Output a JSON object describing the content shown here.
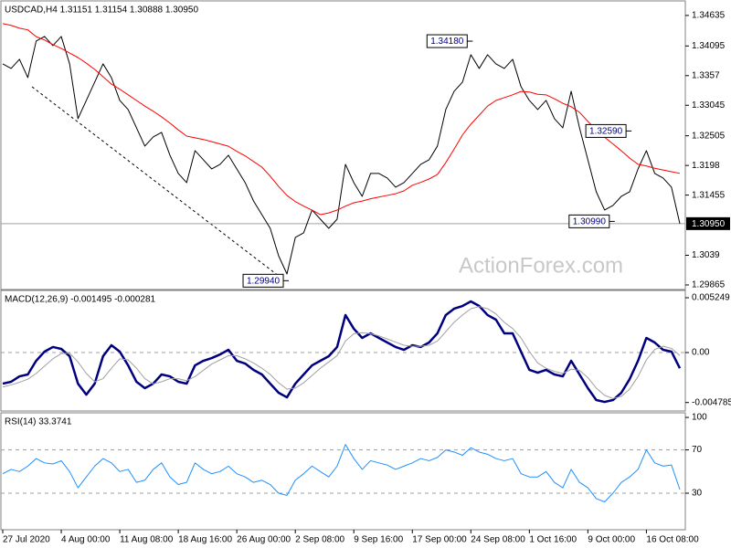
{
  "chart_data": [
    {
      "type": "line",
      "title": "USDCAD,H4 1.31151 1.31154 1.30888 1.30950",
      "ylim": [
        1.298,
        1.3486
      ],
      "yticks": [
        1.34635,
        1.34095,
        1.3357,
        1.33045,
        1.32505,
        1.3198,
        1.31455,
        1.3039,
        1.29865
      ],
      "series": [
        {
          "color": "#000000",
          "values": [
            1.33778,
            1.33697,
            1.33859,
            1.33535,
            1.34182,
            1.34263,
            1.34101,
            1.34263,
            1.33778,
            1.32808,
            1.33131,
            1.33455,
            1.33778,
            1.33535,
            1.33131,
            1.32969,
            1.32646,
            1.32323,
            1.32484,
            1.32565,
            1.32161,
            1.31838,
            1.31676,
            1.32242,
            1.3208,
            1.31918,
            1.31999,
            1.32161,
            1.31918,
            1.31676,
            1.31352,
            1.3111,
            1.30867,
            1.30382,
            1.30059,
            1.30706,
            1.30787,
            1.31191,
            1.31029,
            1.30867,
            1.31029,
            1.31999,
            1.31676,
            1.31433,
            1.31838,
            1.31838,
            1.31757,
            1.31595,
            1.31676,
            1.31838,
            1.31999,
            1.3208,
            1.32323,
            1.32969,
            1.33293,
            1.33455,
            1.3394,
            1.33697,
            1.3394,
            1.33778,
            1.33697,
            1.33859,
            1.33374,
            1.33131,
            1.32969,
            1.33131,
            1.32808,
            1.32646,
            1.33293,
            1.32646,
            1.3208,
            1.31514,
            1.31191,
            1.31272,
            1.31433,
            1.31514,
            1.31918,
            1.32242,
            1.31838,
            1.31757,
            1.31595,
            1.3095
          ]
        },
        {
          "color": "#ff0000",
          "values": [
            1.3449,
            1.3446,
            1.3441,
            1.3438,
            1.3426,
            1.342,
            1.3412,
            1.3405,
            1.3397,
            1.3389,
            1.3379,
            1.3368,
            1.3355,
            1.3342,
            1.3333,
            1.3323,
            1.3313,
            1.3303,
            1.3294,
            1.3284,
            1.3273,
            1.3261,
            1.325,
            1.3247,
            1.3244,
            1.324,
            1.3236,
            1.3232,
            1.3223,
            1.3215,
            1.3205,
            1.3195,
            1.3179,
            1.3161,
            1.3145,
            1.3134,
            1.3126,
            1.3119,
            1.3111,
            1.3114,
            1.3119,
            1.3126,
            1.3132,
            1.3135,
            1.3139,
            1.3142,
            1.3145,
            1.3148,
            1.3153,
            1.3163,
            1.3168,
            1.3174,
            1.3182,
            1.3203,
            1.3227,
            1.3252,
            1.3271,
            1.3287,
            1.3303,
            1.3313,
            1.3318,
            1.3323,
            1.3329,
            1.3328,
            1.3324,
            1.3323,
            1.3316,
            1.3308,
            1.3302,
            1.3292,
            1.3276,
            1.3261,
            1.3248,
            1.3236,
            1.3224,
            1.3211,
            1.32,
            1.3197,
            1.3193,
            1.319,
            1.3187,
            1.3184
          ]
        }
      ],
      "annotations": [
        {
          "value": 1.3418,
          "label": "1.34180",
          "at": 56
        },
        {
          "value": 1.3259,
          "label": "1.32590",
          "at": 75
        },
        {
          "value": 1.3099,
          "label": "1.30990",
          "at": 73
        },
        {
          "value": 1.2994,
          "label": "1.29940",
          "at": 34
        }
      ],
      "last": {
        "value": 1.3095,
        "label": "1.30950"
      },
      "watermark": "ActionForex.com"
    },
    {
      "type": "line",
      "title": "MACD(12,26,9) -0.001495 -0.000281",
      "ylim": [
        -0.00551,
        0.00586
      ],
      "yticks": [
        0.005249,
        {
          "value": 0,
          "label": "0.00"
        },
        -0.004785
      ],
      "series": [
        {
          "color": "#00007f",
          "width": 2.5,
          "values": [
            -0.00298,
            -0.0028,
            -0.00228,
            -0.0021,
            -0.00079,
            9e-05,
            0.00053,
            0.00035,
            -0.00035,
            -0.00298,
            -0.00403,
            -0.00298,
            -0.00035,
            0.0007,
            9e-05,
            -0.00123,
            -0.0028,
            -0.00341,
            -0.00298,
            -0.0021,
            -0.00228,
            -0.0028,
            -0.00298,
            -0.00123,
            -0.00079,
            -0.00053,
            -0.00018,
            0.00026,
            -0.00079,
            -0.00105,
            -0.00166,
            -0.0021,
            -0.00298,
            -0.00385,
            -0.00429,
            -0.00298,
            -0.0021,
            -0.00123,
            -0.00079,
            -0.00035,
            0.00053,
            0.00359,
            0.00228,
            0.0014,
            0.00184,
            0.0014,
            0.00096,
            0.00053,
            0.00026,
            0.0007,
            0.00053,
            0.00096,
            0.00184,
            0.00359,
            0.0042,
            0.00446,
            0.0049,
            0.00446,
            0.00359,
            0.00315,
            0.00184,
            0.00184,
            9e-05,
            -0.00166,
            -0.00193,
            -0.00166,
            -0.0021,
            -0.00228,
            -0.00079,
            -0.0021,
            -0.00341,
            -0.00455,
            -0.00473,
            -0.00455,
            -0.00385,
            -0.00254,
            -0.00079,
            0.0014,
            0.00096,
            0.00026,
            9e-05,
            -0.0015
          ]
        },
        {
          "color": "#a0a0a0",
          "width": 1,
          "values": [
            -0.0033,
            -0.0031,
            -0.00285,
            -0.00255,
            -0.002,
            -0.0013,
            -0.0006,
            -0.0001,
            -5e-05,
            -0.0009,
            -0.002,
            -0.0028,
            -0.0025,
            -0.0015,
            -0.0006,
            -0.0007,
            -0.0015,
            -0.0025,
            -0.003,
            -0.0028,
            -0.0025,
            -0.0025,
            -0.0027,
            -0.0023,
            -0.0017,
            -0.0011,
            -0.0007,
            -0.0003,
            -0.0003,
            -0.0006,
            -0.001,
            -0.0015,
            -0.0021,
            -0.0029,
            -0.0035,
            -0.0034,
            -0.0029,
            -0.0022,
            -0.0015,
            -0.0009,
            -0.0003,
            0.0011,
            0.0018,
            0.0019,
            0.0018,
            0.0016,
            0.0013,
            0.001,
            0.0007,
            0.0006,
            0.0006,
            0.0007,
            0.0011,
            0.002,
            0.0029,
            0.0036,
            0.0042,
            0.0044,
            0.0042,
            0.0037,
            0.0029,
            0.0023,
            0.0014,
            0.0001,
            -0.001,
            -0.0015,
            -0.0018,
            -0.002,
            -0.0016,
            -0.0017,
            -0.0024,
            -0.0034,
            -0.0041,
            -0.0044,
            -0.0042,
            -0.0035,
            -0.0023,
            -0.0007,
            0.0003,
            0.0006,
            0.0004,
            -0.000281
          ]
        }
      ]
    },
    {
      "type": "line",
      "title": "RSI(14) 33.3741",
      "ylim": [
        -2.9,
        103.4
      ],
      "yticks": [
        100,
        70,
        30
      ],
      "levels": [
        70,
        30
      ],
      "categories": [
        "27 Jul 2020",
        null,
        null,
        null,
        null,
        null,
        null,
        "4 Aug 00:00",
        null,
        null,
        null,
        null,
        null,
        null,
        "11 Aug 08:00",
        null,
        null,
        null,
        null,
        null,
        null,
        "18 Aug 16:00",
        null,
        null,
        null,
        null,
        null,
        null,
        "26 Aug 00:00",
        null,
        null,
        null,
        null,
        null,
        null,
        "2 Sep 08:00",
        null,
        null,
        null,
        null,
        null,
        null,
        "9 Sep 16:00",
        null,
        null,
        null,
        null,
        null,
        null,
        "17 Sep 00:00",
        null,
        null,
        null,
        null,
        null,
        null,
        "24 Sep 08:00",
        null,
        null,
        null,
        null,
        null,
        null,
        "1 Oct 16:00",
        null,
        null,
        null,
        null,
        null,
        null,
        "9 Oct 00:00",
        null,
        null,
        null,
        null,
        null,
        null,
        "16 Oct 08:00",
        null,
        null,
        null,
        null
      ],
      "series": [
        {
          "color": "#1e90ff",
          "width": 1,
          "values": [
            48,
            52,
            50,
            55,
            62,
            58,
            57,
            60,
            50,
            35,
            45,
            55,
            62,
            58,
            50,
            52,
            40,
            42,
            52,
            58,
            45,
            38,
            40,
            58,
            52,
            48,
            50,
            55,
            48,
            45,
            40,
            42,
            38,
            30,
            28,
            42,
            48,
            55,
            50,
            45,
            55,
            75,
            62,
            52,
            60,
            58,
            56,
            52,
            55,
            58,
            62,
            60,
            63,
            70,
            68,
            65,
            72,
            68,
            66,
            62,
            60,
            62,
            48,
            45,
            45,
            50,
            40,
            35,
            52,
            40,
            35,
            25,
            22,
            30,
            40,
            45,
            52,
            70,
            58,
            55,
            56,
            33.3741
          ]
        }
      ]
    }
  ]
}
